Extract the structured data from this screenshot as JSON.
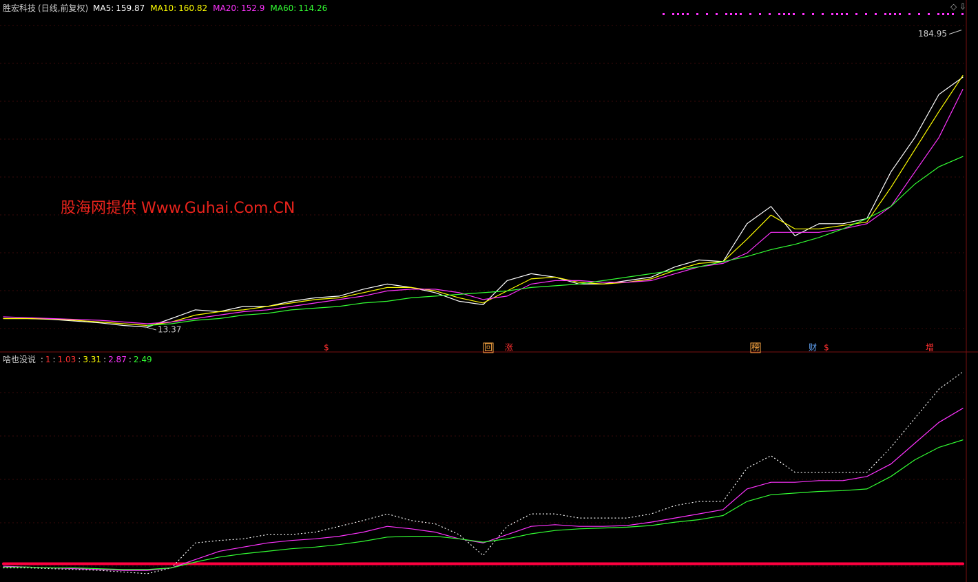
{
  "header": {
    "stock": "胜宏科技",
    "period": "(日线,前复权)",
    "ma": [
      {
        "name": "MA5:",
        "value": 159.87,
        "color": "#ffffff"
      },
      {
        "name": "MA10:",
        "value": 160.82,
        "color": "#ffff00"
      },
      {
        "name": "MA20:",
        "value": 152.9,
        "color": "#ff33ff"
      },
      {
        "name": "MA60:",
        "value": 114.26,
        "color": "#33ff33"
      }
    ]
  },
  "watermark": "股海网提供 Www.Guhai.Com.CN",
  "markers": [
    "$",
    "回",
    "涨",
    "榜",
    "财",
    "$",
    "增"
  ],
  "indicator": {
    "name": "啥也没说",
    "values": [
      {
        "value": 1.0,
        "color": "#ff3030"
      },
      {
        "value": 1.03,
        "color": "#ff3030"
      },
      {
        "value": 3.31,
        "color": "#ffff00"
      },
      {
        "value": 2.87,
        "color": "#ff33ff"
      },
      {
        "value": 2.49,
        "color": "#33ff33"
      }
    ]
  },
  "chart_data": [
    {
      "type": "line",
      "xlim": [
        0,
        40
      ],
      "ylim": [
        5,
        196
      ],
      "high": 184.95,
      "low": 13.37,
      "x": [
        0,
        1,
        2,
        3,
        4,
        5,
        6,
        7,
        8,
        9,
        10,
        11,
        12,
        13,
        14,
        15,
        16,
        17,
        18,
        19,
        20,
        21,
        22,
        23,
        24,
        25,
        26,
        27,
        28,
        29,
        30,
        31,
        32,
        33,
        34,
        35,
        36,
        37,
        38,
        39,
        40
      ],
      "series": [
        {
          "color": "#ffffff",
          "values": [
            20,
            20,
            19.5,
            18.5,
            17.5,
            16,
            15,
            20,
            25,
            24,
            27,
            27,
            30,
            32,
            33,
            37,
            40,
            38,
            35,
            30,
            28,
            42,
            46,
            44,
            40,
            40,
            42,
            44,
            50,
            54,
            53,
            75,
            85,
            68,
            75,
            75,
            78,
            105,
            125,
            150,
            160
          ]
        },
        {
          "color": "#ffff00",
          "values": [
            20,
            20,
            19.8,
            19,
            18,
            17,
            16,
            18,
            22,
            24,
            25,
            27,
            29,
            31,
            32,
            35,
            38,
            38,
            36,
            32,
            29,
            36,
            43,
            44,
            41,
            40,
            41,
            43,
            48,
            52,
            53,
            66,
            80,
            72,
            72,
            74,
            76,
            96,
            118,
            140,
            161
          ]
        },
        {
          "color": "#ff33ff",
          "values": [
            21,
            20.5,
            20,
            19.5,
            19,
            18,
            17,
            18,
            20,
            22,
            24,
            25,
            27,
            29,
            31,
            33,
            36,
            37,
            37,
            35,
            31,
            33,
            40,
            42,
            42,
            41,
            41,
            42,
            46,
            50,
            52,
            58,
            70,
            70,
            70,
            72,
            75,
            85,
            105,
            125,
            153
          ]
        },
        {
          "color": "#33ff33",
          "values": [
            null,
            null,
            null,
            null,
            null,
            null,
            16,
            17,
            19,
            20,
            22,
            23,
            25,
            26,
            27,
            29,
            30,
            32,
            33,
            34,
            35,
            36,
            38,
            39,
            40,
            42,
            44,
            46,
            48,
            50,
            53,
            56,
            60,
            63,
            67,
            72,
            78,
            85,
            98,
            108,
            114
          ]
        }
      ]
    },
    {
      "type": "line",
      "xlim": [
        0,
        40
      ],
      "ylim": [
        0.78,
        3.54
      ],
      "x": [
        0,
        1,
        2,
        3,
        4,
        5,
        6,
        7,
        8,
        9,
        10,
        11,
        12,
        13,
        14,
        15,
        16,
        17,
        18,
        19,
        20,
        21,
        22,
        23,
        24,
        25,
        26,
        27,
        28,
        29,
        30,
        31,
        32,
        33,
        34,
        35,
        36,
        37,
        38,
        39,
        40
      ],
      "series": [
        {
          "color": "#ff0040",
          "values": [
            1,
            1,
            1,
            1,
            1,
            1,
            1,
            1,
            1,
            1,
            1,
            1,
            1,
            1,
            1,
            1,
            1,
            1,
            1,
            1,
            1,
            1,
            1,
            1,
            1,
            1,
            1,
            1,
            1,
            1,
            1,
            1,
            1,
            1,
            1,
            1,
            1,
            1,
            1,
            1,
            1
          ]
        },
        {
          "color": "#ffffff",
          "dotted": true,
          "values": [
            0.95,
            0.95,
            0.94,
            0.93,
            0.92,
            0.9,
            0.88,
            0.95,
            1.25,
            1.28,
            1.3,
            1.35,
            1.35,
            1.38,
            1.45,
            1.52,
            1.6,
            1.52,
            1.48,
            1.35,
            1.1,
            1.45,
            1.6,
            1.6,
            1.55,
            1.55,
            1.55,
            1.6,
            1.7,
            1.75,
            1.75,
            2.15,
            2.3,
            2.1,
            2.1,
            2.1,
            2.1,
            2.4,
            2.75,
            3.1,
            3.31
          ]
        },
        {
          "color": "#ff33ff",
          "values": [
            0.97,
            0.96,
            0.95,
            0.94,
            0.93,
            0.92,
            0.92,
            0.95,
            1.05,
            1.15,
            1.2,
            1.25,
            1.28,
            1.3,
            1.33,
            1.38,
            1.45,
            1.42,
            1.38,
            1.3,
            1.25,
            1.35,
            1.45,
            1.47,
            1.45,
            1.45,
            1.46,
            1.5,
            1.55,
            1.6,
            1.65,
            1.9,
            1.98,
            1.98,
            2.0,
            2.0,
            2.05,
            2.2,
            2.45,
            2.7,
            2.87
          ]
        },
        {
          "color": "#33ff33",
          "values": [
            0.96,
            0.96,
            0.95,
            0.95,
            0.94,
            0.93,
            0.93,
            0.95,
            1.02,
            1.08,
            1.12,
            1.15,
            1.18,
            1.2,
            1.23,
            1.27,
            1.32,
            1.33,
            1.33,
            1.3,
            1.26,
            1.3,
            1.36,
            1.4,
            1.42,
            1.43,
            1.44,
            1.46,
            1.5,
            1.53,
            1.58,
            1.75,
            1.83,
            1.85,
            1.87,
            1.88,
            1.9,
            2.05,
            2.25,
            2.4,
            2.49
          ]
        }
      ]
    }
  ]
}
